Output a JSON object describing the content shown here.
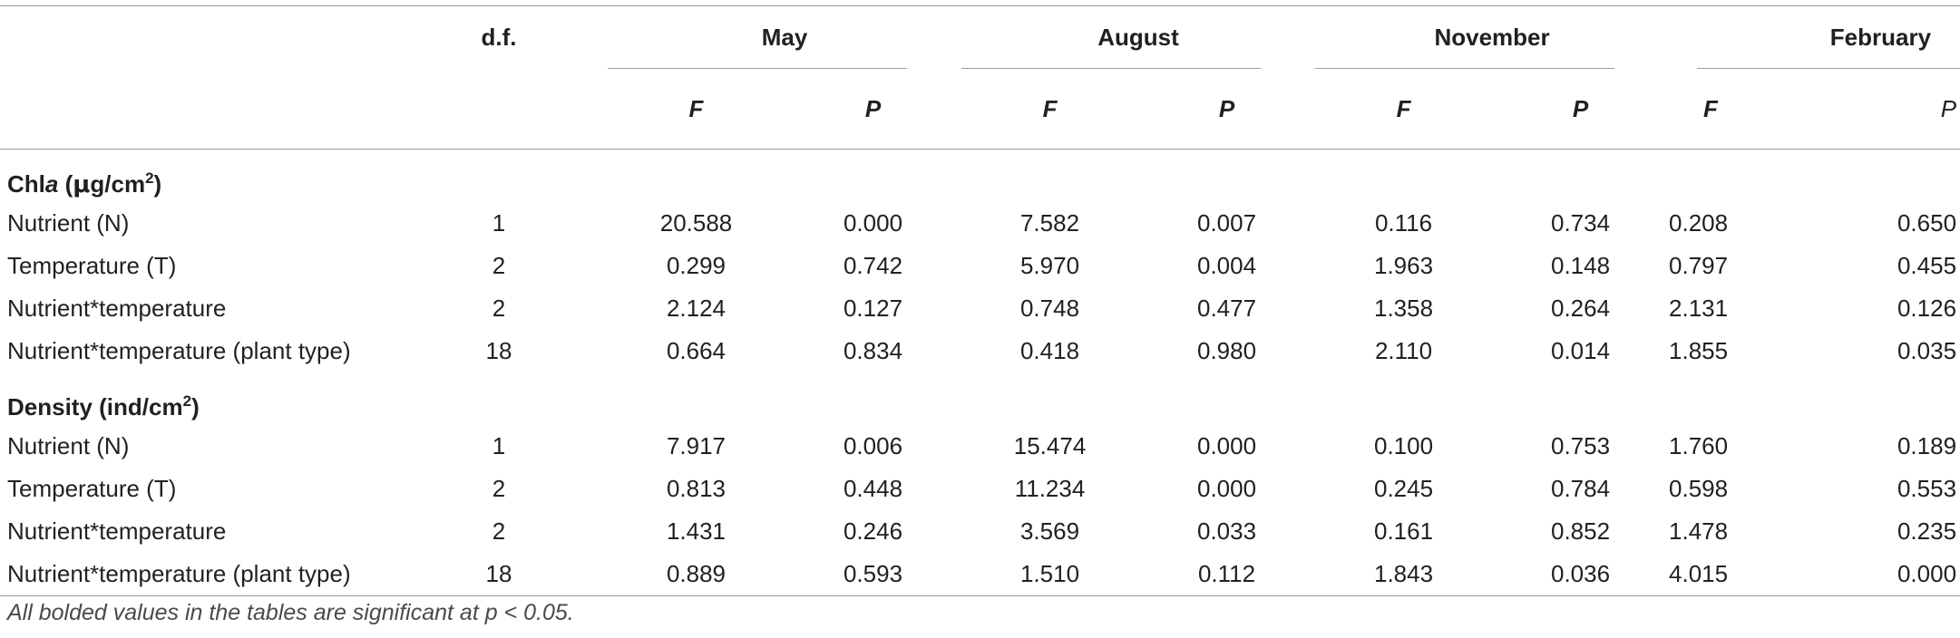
{
  "header": {
    "df": "d.f.",
    "months": [
      "May",
      "August",
      "November",
      "February"
    ],
    "f_label": "F",
    "p_label": "P"
  },
  "sections": [
    {
      "title_prefix": "Chl",
      "title_italic": "a",
      "title_mid": " (",
      "title_mu": "μ",
      "title_unit": "g/cm",
      "title_sup": "2",
      "title_end": ")",
      "rows": [
        {
          "label": "Nutrient (N)",
          "df": "1",
          "values": [
            "20.588",
            "0.000",
            "7.582",
            "0.007",
            "0.116",
            "0.734",
            "0.208",
            "0.650"
          ]
        },
        {
          "label": "Temperature (T)",
          "df": "2",
          "values": [
            "0.299",
            "0.742",
            "5.970",
            "0.004",
            "1.963",
            "0.148",
            "0.797",
            "0.455"
          ]
        },
        {
          "label": "Nutrient*temperature",
          "df": "2",
          "values": [
            "2.124",
            "0.127",
            "0.748",
            "0.477",
            "1.358",
            "0.264",
            "2.131",
            "0.126"
          ]
        },
        {
          "label": "Nutrient*temperature (plant type)",
          "df": "18",
          "values": [
            "0.664",
            "0.834",
            "0.418",
            "0.980",
            "2.110",
            "0.014",
            "1.855",
            "0.035"
          ]
        }
      ]
    },
    {
      "title_prefix": "Density (ind/cm",
      "title_sup": "2",
      "title_end": ")",
      "rows": [
        {
          "label": "Nutrient (N)",
          "df": "1",
          "values": [
            "7.917",
            "0.006",
            "15.474",
            "0.000",
            "0.100",
            "0.753",
            "1.760",
            "0.189"
          ]
        },
        {
          "label": "Temperature (T)",
          "df": "2",
          "values": [
            "0.813",
            "0.448",
            "11.234",
            "0.000",
            "0.245",
            "0.784",
            "0.598",
            "0.553"
          ]
        },
        {
          "label": "Nutrient*temperature",
          "df": "2",
          "values": [
            "1.431",
            "0.246",
            "3.569",
            "0.033",
            "0.161",
            "0.852",
            "1.478",
            "0.235"
          ]
        },
        {
          "label": "Nutrient*temperature (plant type)",
          "df": "18",
          "values": [
            "0.889",
            "0.593",
            "1.510",
            "0.112",
            "1.843",
            "0.036",
            "4.015",
            "0.000"
          ]
        }
      ]
    }
  ],
  "footnote": "All bolded values in the tables are significant at p < 0.05."
}
